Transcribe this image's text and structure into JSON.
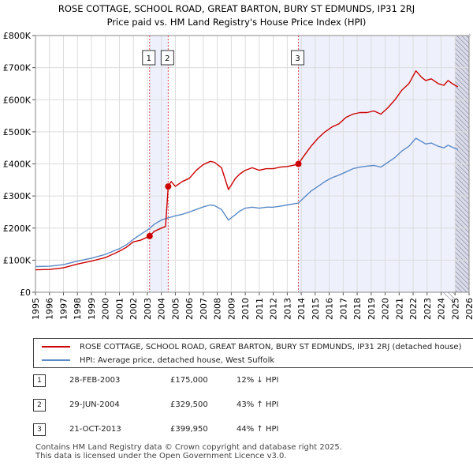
{
  "chart_data": {
    "type": "line",
    "title_line1": "ROSE COTTAGE, SCHOOL ROAD, GREAT BARTON, BURY ST EDMUNDS, IP31 2RJ",
    "title_line2": "Price paid vs. HM Land Registry's House Price Index (HPI)",
    "x_ticks": [
      "1995",
      "1996",
      "1997",
      "1998",
      "1999",
      "2000",
      "2001",
      "2002",
      "2003",
      "2004",
      "2005",
      "2006",
      "2007",
      "2008",
      "2009",
      "2010",
      "2011",
      "2012",
      "2013",
      "2014",
      "2015",
      "2016",
      "2017",
      "2018",
      "2019",
      "2020",
      "2021",
      "2022",
      "2023",
      "2024",
      "2025",
      "2026"
    ],
    "y_ticks": [
      "£0",
      "£100K",
      "£200K",
      "£300K",
      "£400K",
      "£500K",
      "£600K",
      "£700K",
      "£800K"
    ],
    "xlim": [
      1995,
      2026
    ],
    "ylim": [
      0,
      800000
    ],
    "shaded_regions": [
      [
        2003.16,
        2004.49
      ],
      [
        2013.8,
        2026
      ],
      [
        2025.0,
        2026
      ]
    ],
    "series": [
      {
        "name": "ROSE COTTAGE, SCHOOL ROAD, GREAT BARTON, BURY ST EDMUNDS, IP31 2RJ (detached house)",
        "color": "#cc0000",
        "x": [
          1995,
          1996,
          1997,
          1998,
          1999,
          2000,
          2000.5,
          2001,
          2001.5,
          2002,
          2002.5,
          2003.16,
          2003.5,
          2004,
          2004.3,
          2004.49,
          2004.7,
          2005,
          2005.5,
          2006,
          2006.5,
          2007,
          2007.5,
          2007.8,
          2008.3,
          2008.8,
          2009.3,
          2009.6,
          2010,
          2010.5,
          2011,
          2011.5,
          2012,
          2012.5,
          2013,
          2013.5,
          2013.8,
          2014.2,
          2014.7,
          2015.2,
          2015.7,
          2016.2,
          2016.7,
          2017.2,
          2017.7,
          2018.2,
          2018.7,
          2019.2,
          2019.7,
          2020.2,
          2020.7,
          2021.2,
          2021.7,
          2022.2,
          2022.6,
          2022.9,
          2023.3,
          2023.8,
          2024.2,
          2024.5,
          2024.8,
          2025.2
        ],
        "values": [
          70000,
          71000,
          76000,
          88000,
          97000,
          108000,
          118000,
          128000,
          140000,
          157000,
          162000,
          175000,
          190000,
          200000,
          205000,
          329500,
          345000,
          330000,
          345000,
          355000,
          380000,
          398000,
          408000,
          405000,
          388000,
          320000,
          355000,
          368000,
          380000,
          388000,
          380000,
          385000,
          385000,
          390000,
          392000,
          396000,
          399950,
          425000,
          455000,
          480000,
          500000,
          515000,
          525000,
          545000,
          555000,
          560000,
          560000,
          565000,
          555000,
          575000,
          600000,
          630000,
          650000,
          690000,
          670000,
          660000,
          665000,
          650000,
          645000,
          660000,
          650000,
          640000
        ]
      },
      {
        "name": "HPI: Average price, detached house, West Suffolk",
        "color": "#5b8ac6",
        "x": [
          1995,
          1996,
          1997,
          1998,
          1999,
          2000,
          2000.5,
          2001,
          2001.5,
          2002,
          2002.5,
          2003.16,
          2003.5,
          2004,
          2004.5,
          2005,
          2005.5,
          2006,
          2006.5,
          2007,
          2007.5,
          2007.8,
          2008.3,
          2008.8,
          2009.3,
          2009.6,
          2010,
          2010.5,
          2011,
          2011.5,
          2012,
          2012.5,
          2013,
          2013.5,
          2013.8,
          2014.2,
          2014.7,
          2015.2,
          2015.7,
          2016.2,
          2016.7,
          2017.2,
          2017.7,
          2018.2,
          2018.7,
          2019.2,
          2019.7,
          2020.2,
          2020.7,
          2021.2,
          2021.7,
          2022.2,
          2022.6,
          2022.9,
          2023.3,
          2023.8,
          2024.2,
          2024.5,
          2024.8,
          2025.2
        ],
        "values": [
          80000,
          81000,
          86000,
          97000,
          106000,
          118000,
          127000,
          136000,
          148000,
          165000,
          180000,
          199000,
          212000,
          225000,
          232000,
          238000,
          243000,
          250000,
          258000,
          266000,
          272000,
          270000,
          258000,
          225000,
          242000,
          253000,
          262000,
          265000,
          262000,
          265000,
          265000,
          268000,
          272000,
          276000,
          278000,
          295000,
          315000,
          330000,
          345000,
          357000,
          365000,
          375000,
          385000,
          390000,
          393000,
          395000,
          390000,
          405000,
          420000,
          440000,
          455000,
          480000,
          470000,
          462000,
          465000,
          455000,
          450000,
          458000,
          452000,
          445000
        ]
      }
    ],
    "sales": [
      {
        "label": "1",
        "x": 2003.16,
        "value": 175000
      },
      {
        "label": "2",
        "x": 2004.49,
        "value": 329500
      },
      {
        "label": "3",
        "x": 2013.8,
        "value": 399950
      }
    ]
  },
  "legend": {
    "property_label": "ROSE COTTAGE, SCHOOL ROAD, GREAT BARTON, BURY ST EDMUNDS, IP31 2RJ (detached house)",
    "hpi_label": "HPI: Average price, detached house, West Suffolk",
    "property_color": "#cc0000",
    "hpi_color": "#5b8ac6"
  },
  "sales_table": [
    {
      "num": "1",
      "date": "28-FEB-2003",
      "price": "£175,000",
      "hpi": "12% ↓ HPI"
    },
    {
      "num": "2",
      "date": "29-JUN-2004",
      "price": "£329,500",
      "hpi": "43% ↑ HPI"
    },
    {
      "num": "3",
      "date": "21-OCT-2013",
      "price": "£399,950",
      "hpi": "44% ↑ HPI"
    }
  ],
  "footer": {
    "line1": "Contains HM Land Registry data © Crown copyright and database right 2025.",
    "line2": "This data is licensed under the Open Government Licence v3.0."
  }
}
